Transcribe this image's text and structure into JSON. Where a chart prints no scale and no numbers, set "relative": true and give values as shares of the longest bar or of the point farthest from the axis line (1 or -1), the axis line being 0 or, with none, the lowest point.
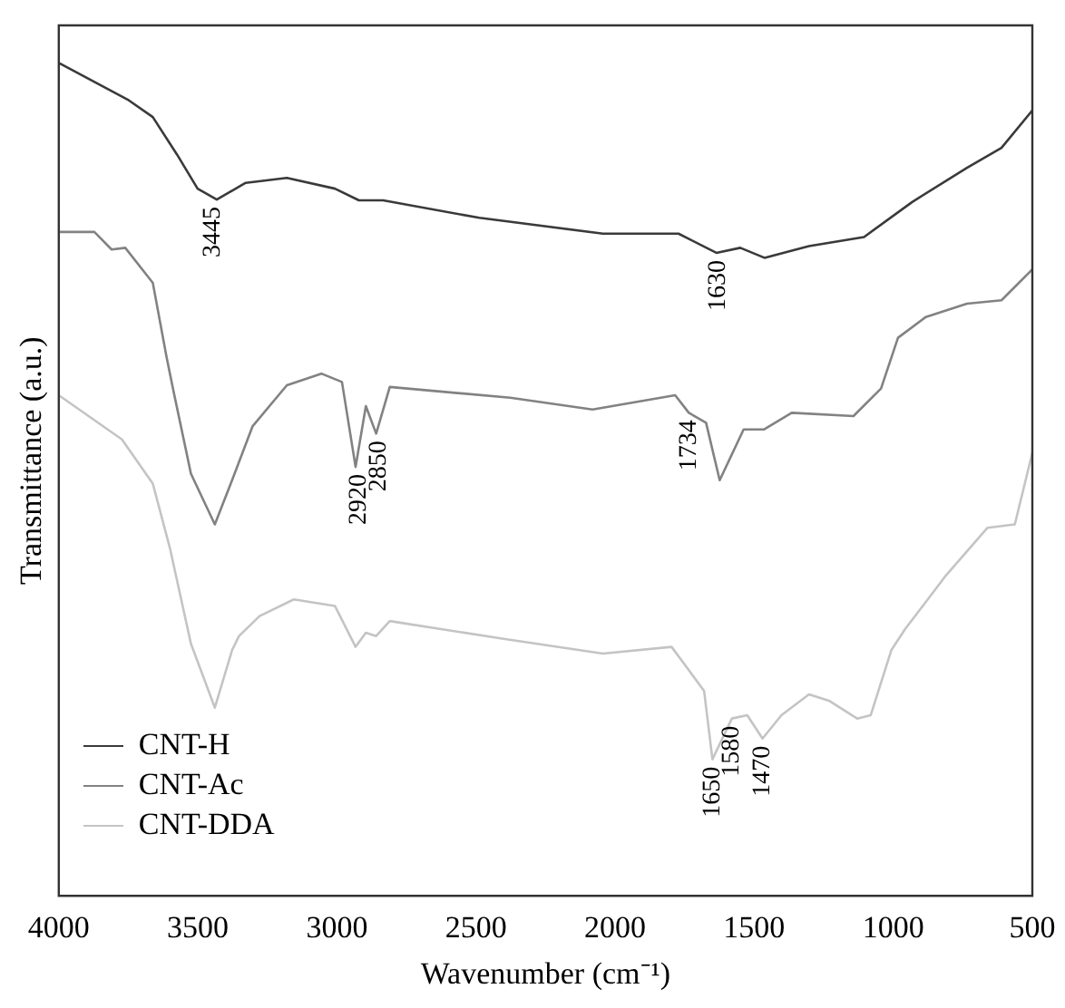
{
  "chart_data": {
    "type": "line",
    "xlabel": "Wavenumber (cm⁻¹)",
    "ylabel": "Transmittance (a.u.)",
    "relative": true,
    "xlim": [
      4000,
      500
    ],
    "xticks": [
      4000,
      3500,
      3000,
      2500,
      2000,
      1500,
      1000,
      500
    ],
    "legend": "bottom left",
    "grid": false,
    "marker": "none",
    "line_style": "solid",
    "series": [
      {
        "name": "CNT-H",
        "color": "#3a3a3a",
        "x": [
          4000,
          3748,
          3662,
          3575,
          3501,
          3432,
          3328,
          3180,
          3007,
          2921,
          2834,
          2488,
          2044,
          1772,
          1636,
          1550,
          1463,
          1303,
          1105,
          932,
          735,
          611,
          500
        ],
        "values": [
          1.0,
          0.955,
          0.935,
          0.89,
          0.849,
          0.836,
          0.856,
          0.862,
          0.849,
          0.835,
          0.835,
          0.814,
          0.795,
          0.795,
          0.772,
          0.778,
          0.766,
          0.78,
          0.791,
          0.833,
          0.874,
          0.898,
          0.943
        ]
      },
      {
        "name": "CNT-Ac",
        "color": "#828282",
        "x": [
          4000,
          3872,
          3810,
          3761,
          3662,
          3612,
          3587,
          3525,
          3439,
          3377,
          3303,
          3180,
          3056,
          2982,
          2933,
          2896,
          2859,
          2810,
          2377,
          2081,
          1784,
          1735,
          1673,
          1624,
          1538,
          1464,
          1365,
          1143,
          1044,
          983,
          883,
          735,
          611,
          500
        ],
        "values": [
          0.797,
          0.797,
          0.776,
          0.778,
          0.736,
          0.646,
          0.605,
          0.507,
          0.446,
          0.499,
          0.564,
          0.613,
          0.627,
          0.617,
          0.515,
          0.588,
          0.555,
          0.611,
          0.598,
          0.584,
          0.601,
          0.58,
          0.568,
          0.499,
          0.56,
          0.56,
          0.58,
          0.576,
          0.609,
          0.67,
          0.695,
          0.711,
          0.715,
          0.752
        ]
      },
      {
        "name": "CNT-DDA",
        "color": "#c4c4c4",
        "x": [
          4000,
          3773,
          3662,
          3600,
          3525,
          3439,
          3377,
          3352,
          3278,
          3155,
          3007,
          2933,
          2896,
          2859,
          2810,
          2390,
          2044,
          1797,
          1735,
          1680,
          1650,
          1580,
          1525,
          1470,
          1402,
          1303,
          1229,
          1130,
          1081,
          1007,
          958,
          810,
          661,
          563,
          500
        ],
        "values": [
          0.601,
          0.548,
          0.495,
          0.417,
          0.303,
          0.226,
          0.295,
          0.312,
          0.336,
          0.356,
          0.348,
          0.299,
          0.316,
          0.312,
          0.33,
          0.308,
          0.291,
          0.299,
          0.271,
          0.246,
          0.164,
          0.213,
          0.217,
          0.189,
          0.217,
          0.242,
          0.234,
          0.213,
          0.217,
          0.295,
          0.32,
          0.385,
          0.442,
          0.446,
          0.532
        ]
      }
    ],
    "annotations": [
      {
        "text": "3445",
        "x": 3445,
        "y": 0.836
      },
      {
        "text": "1630",
        "x": 1630,
        "y": 0.772
      },
      {
        "text": "2920",
        "x": 2920,
        "y": 0.515
      },
      {
        "text": "2850",
        "x": 2850,
        "y": 0.555
      },
      {
        "text": "1734",
        "x": 1734,
        "y": 0.58
      },
      {
        "text": "1650",
        "x": 1650,
        "y": 0.164
      },
      {
        "text": "1580",
        "x": 1580,
        "y": 0.213
      },
      {
        "text": "1470",
        "x": 1470,
        "y": 0.189
      }
    ]
  }
}
